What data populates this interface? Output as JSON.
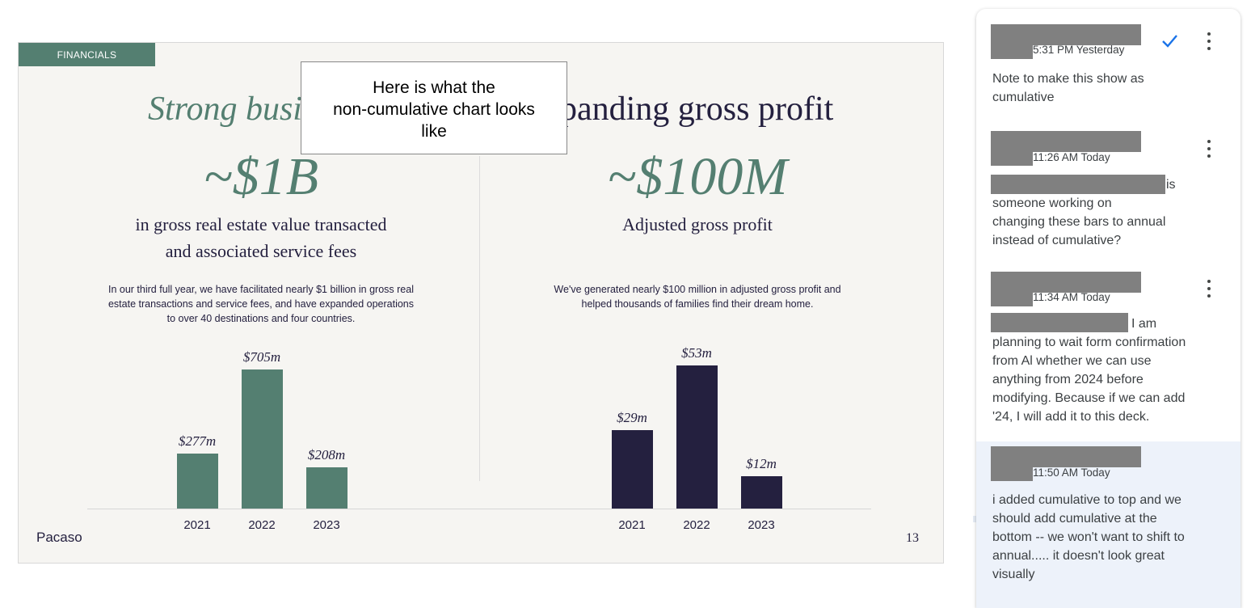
{
  "slide": {
    "tag": "FINANCIALS",
    "left_heading": "Strong busin",
    "right_heading": "panding gross profit",
    "left_bignum": "~$1B",
    "left_subhead_1": "in gross real estate value transacted",
    "left_subhead_2": "and associated service fees",
    "left_desc_1": "In our third full year, we have facilitated nearly $1 billion in gross real",
    "left_desc_2": "estate transactions and service fees, and have expanded operations",
    "left_desc_3": "to over 40 destinations and four countries.",
    "right_bignum": "~$100M",
    "right_subhead": "Adjusted gross profit",
    "right_desc_1": "We've generated nearly $100 million in adjusted gross profit and",
    "right_desc_2": "helped thousands of families find their dream home.",
    "brand": "Pacaso",
    "page_number": "13",
    "colors": {
      "green": "#547f71",
      "navy": "#24203f",
      "background": "#f6f5f2"
    }
  },
  "note": {
    "line_1": "Here is what the",
    "line_2": "non-cumulative chart looks",
    "line_3": "like"
  },
  "chart_data": [
    {
      "type": "bar",
      "categories": [
        "2021",
        "2022",
        "2023"
      ],
      "values": [
        277,
        705,
        208
      ],
      "data_labels": [
        "$277m",
        "$705m",
        "$208m"
      ],
      "color": "#547f71"
    },
    {
      "type": "bar",
      "categories": [
        "2021",
        "2022",
        "2023"
      ],
      "values": [
        29,
        53,
        12
      ],
      "data_labels": [
        "$29m",
        "$53m",
        "$12m"
      ],
      "color": "#24203f"
    }
  ],
  "comments": [
    {
      "time": "5:31 PM Yesterday",
      "body_lines": [
        "Note to make this show as",
        "cumulative"
      ],
      "resolved_icon": "checkmark-icon"
    },
    {
      "time": "11:26 AM Today",
      "body_lines": [
        "is",
        "someone working on",
        "changing these bars to annual",
        "instead of cumulative?"
      ]
    },
    {
      "time": "11:34 AM Today",
      "body_lines": [
        "I am",
        "planning to wait form confirmation",
        "from Al whether we can use",
        "anything from 2024 before",
        "modifying. Because if we can add",
        "'24, I will add it to this deck."
      ]
    },
    {
      "time": "11:50 AM Today",
      "body_lines": [
        "i added cumulative to top and we",
        "should add cumulative at the",
        "bottom -- we won't want to shift to",
        "annual..... it doesn't look great",
        "visually"
      ]
    }
  ]
}
